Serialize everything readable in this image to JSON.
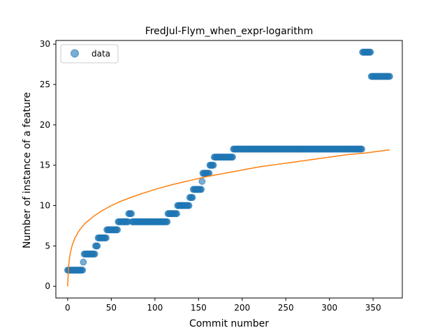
{
  "chart_data": {
    "type": "scatter",
    "title": "FredJul-Flym_when_expr-logarithm",
    "xlabel": "Commit number",
    "ylabel": "Number of instance of a feature",
    "xlim": [
      -13.5,
      383.5
    ],
    "ylim": [
      -1.45,
      30.45
    ],
    "xticks": [
      0,
      50,
      100,
      150,
      200,
      250,
      300,
      350
    ],
    "yticks": [
      0,
      5,
      10,
      15,
      20,
      25,
      30
    ],
    "grid": false,
    "legend": {
      "placement": "top-left",
      "entries": [
        "data"
      ]
    },
    "colors": {
      "data": "#1f77b4",
      "fit": "#ff7f0e"
    },
    "series": [
      {
        "name": "data",
        "kind": "scatter",
        "segments": [
          {
            "x_from": 0,
            "x_to": 17,
            "y": 2
          },
          {
            "x_from": 18,
            "x_to": 18,
            "y": 3
          },
          {
            "x_from": 19,
            "x_to": 31,
            "y": 4
          },
          {
            "x_from": 32,
            "x_to": 34,
            "y": 5
          },
          {
            "x_from": 35,
            "x_to": 44,
            "y": 6
          },
          {
            "x_from": 45,
            "x_to": 57,
            "y": 7
          },
          {
            "x_from": 58,
            "x_to": 69,
            "y": 8
          },
          {
            "x_from": 70,
            "x_to": 73,
            "y": 9
          },
          {
            "x_from": 74,
            "x_to": 114,
            "y": 8
          },
          {
            "x_from": 115,
            "x_to": 125,
            "y": 9
          },
          {
            "x_from": 126,
            "x_to": 139,
            "y": 10
          },
          {
            "x_from": 140,
            "x_to": 143,
            "y": 11
          },
          {
            "x_from": 144,
            "x_to": 153,
            "y": 12
          },
          {
            "x_from": 154,
            "x_to": 154,
            "y": 13
          },
          {
            "x_from": 155,
            "x_to": 162,
            "y": 14
          },
          {
            "x_from": 163,
            "x_to": 167,
            "y": 15
          },
          {
            "x_from": 168,
            "x_to": 189,
            "y": 16
          },
          {
            "x_from": 190,
            "x_to": 337,
            "y": 17
          },
          {
            "x_from": 338,
            "x_to": 347,
            "y": 29
          },
          {
            "x_from": 348,
            "x_to": 369,
            "y": 26
          }
        ]
      },
      {
        "name": "fit",
        "kind": "line",
        "model": "logarithm",
        "samples": [
          [
            0,
            0
          ],
          [
            1,
            2.4
          ],
          [
            2,
            3.4
          ],
          [
            3,
            4.1
          ],
          [
            5,
            5.0
          ],
          [
            8,
            5.9
          ],
          [
            12,
            6.7
          ],
          [
            16,
            7.3
          ],
          [
            20,
            7.8
          ],
          [
            30,
            8.7
          ],
          [
            40,
            9.4
          ],
          [
            50,
            10.0
          ],
          [
            60,
            10.5
          ],
          [
            70,
            10.9
          ],
          [
            80,
            11.3
          ],
          [
            100,
            12.0
          ],
          [
            120,
            12.6
          ],
          [
            140,
            13.1
          ],
          [
            160,
            13.6
          ],
          [
            180,
            14.0
          ],
          [
            200,
            14.4
          ],
          [
            220,
            14.8
          ],
          [
            240,
            15.1
          ],
          [
            260,
            15.4
          ],
          [
            280,
            15.7
          ],
          [
            300,
            16.0
          ],
          [
            320,
            16.3
          ],
          [
            340,
            16.5
          ],
          [
            369,
            16.9
          ]
        ]
      }
    ]
  }
}
